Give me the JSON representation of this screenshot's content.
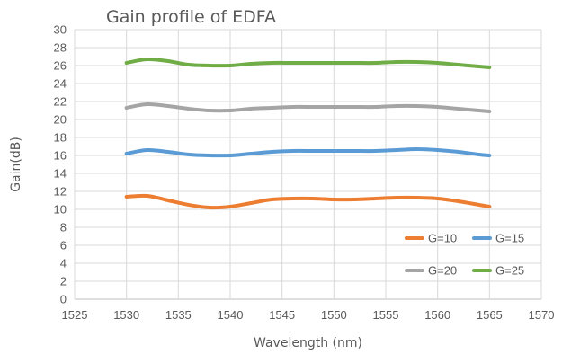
{
  "chart_data": {
    "type": "line",
    "title": "Gain profile of EDFA",
    "xlabel": "Wavelength (nm)",
    "ylabel": "Gain(dB)",
    "xlim": [
      1525,
      1570
    ],
    "ylim": [
      0,
      30
    ],
    "x_ticks": [
      1525,
      1530,
      1535,
      1540,
      1545,
      1550,
      1555,
      1560,
      1565,
      1570
    ],
    "y_ticks": [
      0,
      2,
      4,
      6,
      8,
      10,
      12,
      14,
      16,
      18,
      20,
      22,
      24,
      26,
      28,
      30
    ],
    "grid": true,
    "legend_position": "bottom-right",
    "x": [
      1530,
      1532,
      1534,
      1536,
      1538,
      1540,
      1542,
      1544,
      1546,
      1548,
      1550,
      1552,
      1554,
      1556,
      1558,
      1560,
      1562,
      1564,
      1565
    ],
    "series": [
      {
        "name": "G=10",
        "color": "#ed7d31",
        "values": [
          11.4,
          11.5,
          11.0,
          10.5,
          10.2,
          10.3,
          10.7,
          11.1,
          11.2,
          11.2,
          11.1,
          11.1,
          11.2,
          11.3,
          11.3,
          11.2,
          10.9,
          10.5,
          10.3
        ]
      },
      {
        "name": "G=15",
        "color": "#5b9bd5",
        "values": [
          16.2,
          16.6,
          16.4,
          16.1,
          16.0,
          16.0,
          16.2,
          16.4,
          16.5,
          16.5,
          16.5,
          16.5,
          16.5,
          16.6,
          16.7,
          16.6,
          16.4,
          16.1,
          16.0
        ]
      },
      {
        "name": "G=20",
        "color": "#a5a5a5",
        "values": [
          21.3,
          21.7,
          21.5,
          21.2,
          21.0,
          21.0,
          21.2,
          21.3,
          21.4,
          21.4,
          21.4,
          21.4,
          21.4,
          21.5,
          21.5,
          21.4,
          21.2,
          21.0,
          20.9
        ]
      },
      {
        "name": "G=25",
        "color": "#70ad47",
        "values": [
          26.3,
          26.7,
          26.5,
          26.1,
          26.0,
          26.0,
          26.2,
          26.3,
          26.3,
          26.3,
          26.3,
          26.3,
          26.3,
          26.4,
          26.4,
          26.3,
          26.1,
          25.9,
          25.8
        ]
      }
    ]
  }
}
